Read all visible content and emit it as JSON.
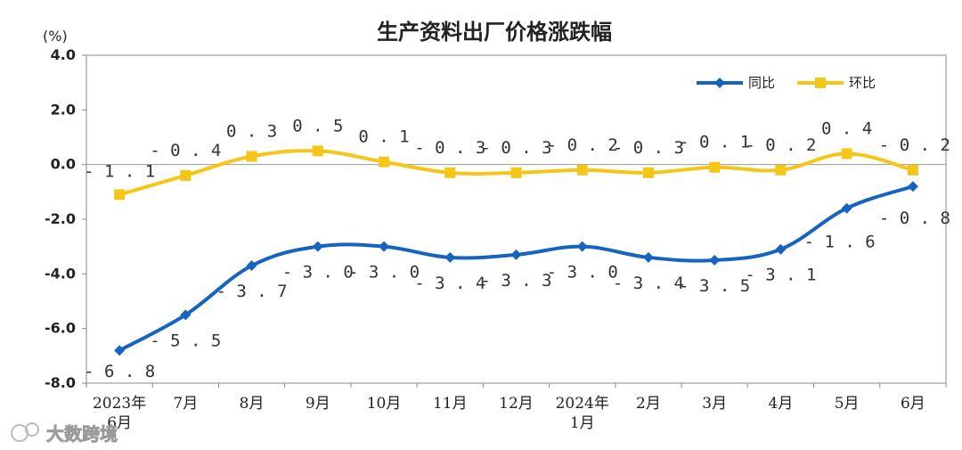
{
  "chart_data": {
    "type": "line",
    "title": "生产资料出厂价格涨跌幅",
    "unit": "(%)",
    "ylim": [
      -8.0,
      4.0
    ],
    "yticks": [
      "4.0",
      "2.0",
      "0.0",
      "-2.0",
      "-4.0",
      "-6.0",
      "-8.0"
    ],
    "categories": [
      [
        "2023年",
        "6月"
      ],
      [
        "7月"
      ],
      [
        "8月"
      ],
      [
        "9月"
      ],
      [
        "10月"
      ],
      [
        "11月"
      ],
      [
        "12月"
      ],
      [
        "2024年",
        "1月"
      ],
      [
        "2月"
      ],
      [
        "3月"
      ],
      [
        "4月"
      ],
      [
        "5月"
      ],
      [
        "6月"
      ]
    ],
    "legend_position": "top-right",
    "series": [
      {
        "name": "同比",
        "color": "#1565c0",
        "marker": "diamond",
        "values": [
          -6.8,
          -5.5,
          -3.7,
          -3.0,
          -3.0,
          -3.4,
          -3.3,
          -3.0,
          -3.4,
          -3.5,
          -3.1,
          -1.6,
          -0.8
        ],
        "labels": [
          "-6.8",
          "-5.5",
          "-3.7",
          "-3.0",
          "-3.0",
          "-3.4",
          "-3.3",
          "-3.0",
          "-3.4",
          "-3.5",
          "-3.1",
          "-1.6",
          "-0.8"
        ]
      },
      {
        "name": "环比",
        "color": "#f5c518",
        "marker": "square",
        "values": [
          -1.1,
          -0.4,
          0.3,
          0.5,
          0.1,
          -0.3,
          -0.3,
          -0.2,
          -0.3,
          -0.1,
          -0.2,
          0.4,
          -0.2
        ],
        "labels": [
          "-1.1",
          "-0.4",
          "0.3",
          "0.5",
          "0.1",
          "-0.3",
          "-0.3",
          "-0.2",
          "-0.3",
          "-0.1",
          "-0.2",
          "0.4",
          "-0.2"
        ]
      }
    ]
  },
  "watermark": {
    "text": "大数跨境"
  }
}
